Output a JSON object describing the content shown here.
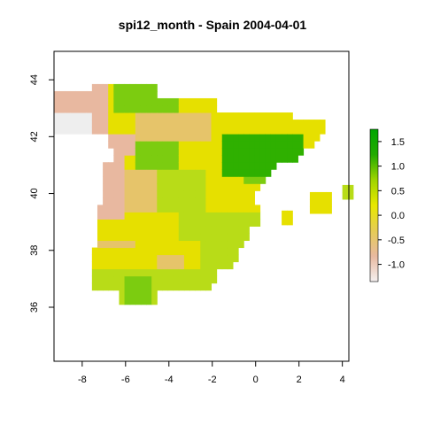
{
  "title": "spi12_month - Spain 2004-04-01",
  "map": {
    "x_range": [
      -9.3,
      4.3
    ],
    "y_range": [
      34.1,
      45.0
    ],
    "x_ticks": [
      -8,
      -6,
      -4,
      -2,
      0,
      2,
      4
    ],
    "y_ticks": [
      36,
      38,
      40,
      42,
      44
    ],
    "cell_size_deg": 0.25
  },
  "legend": {
    "ticks": [
      "1.5",
      "1.0",
      "0.5",
      "0.0",
      "-0.5",
      "-1.0"
    ],
    "tick_values": [
      1.5,
      1.0,
      0.5,
      0.0,
      -0.5,
      -1.0
    ],
    "range": [
      -1.35,
      1.75
    ],
    "colors": [
      "#f5f0f0",
      "#e8b9a0",
      "#e6cc55",
      "#e8e800",
      "#9fd400",
      "#22aa00",
      "#00a600"
    ]
  },
  "raster_colors": {
    "very_dry": "#eeeeee",
    "dry": "#e8b8a0",
    "slightly_dry": "#e6c46a",
    "neutral": "#e6e000",
    "slightly_wet": "#b8dc18",
    "wet": "#7ccc10",
    "very_wet": "#2fb000"
  },
  "islands": [
    {
      "name": "mallorca",
      "lon": [
        2.5,
        3.5
      ],
      "lat": [
        39.3,
        39.9
      ]
    },
    {
      "name": "menorca",
      "lon": [
        4.0,
        4.3
      ],
      "lat": [
        39.8,
        40.1
      ]
    },
    {
      "name": "ibiza",
      "lon": [
        1.2,
        1.6
      ],
      "lat": [
        38.9,
        39.2
      ]
    }
  ]
}
